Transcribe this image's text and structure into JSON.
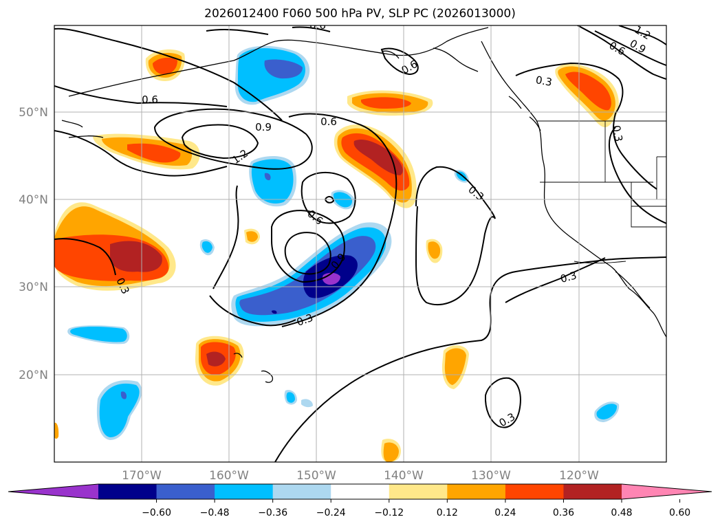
{
  "title": "2026012400 F060 500 hPa PV, SLP PC (2026013000)",
  "map": {
    "lon_ticks": [
      "170°W",
      "160°W",
      "150°W",
      "140°W",
      "130°W",
      "120°W"
    ],
    "lat_ticks": [
      "50°N",
      "40°N",
      "30°N",
      "20°N"
    ],
    "contour_labels": [
      {
        "text": "0.6"
      },
      {
        "text": "0.9"
      },
      {
        "text": "1.2"
      },
      {
        "text": "0.6"
      },
      {
        "text": "0.6"
      },
      {
        "text": "0.6"
      },
      {
        "text": "0.3"
      },
      {
        "text": "0.3"
      },
      {
        "text": "0.3"
      },
      {
        "text": "0.6"
      },
      {
        "text": "0.9"
      },
      {
        "text": "1.2"
      },
      {
        "text": "0.3"
      },
      {
        "text": "0.3"
      },
      {
        "text": "0.3"
      },
      {
        "text": "0.6"
      },
      {
        "text": "0.3"
      },
      {
        "text": "0.9"
      }
    ]
  },
  "colorbar": {
    "tick_labels": [
      "−0.60",
      "−0.48",
      "−0.36",
      "−0.24",
      "−0.12",
      "0.12",
      "0.24",
      "0.36",
      "0.48",
      "0.60"
    ],
    "colors": [
      "#9933cc",
      "#00008b",
      "#3a5fcd",
      "#00bfff",
      "#add8f0",
      "#ffffff",
      "#ffe88a",
      "#ffa500",
      "#ff4500",
      "#b22222",
      "#ff85b3"
    ]
  },
  "colors": {
    "orange": "#ffa500",
    "red_orange": "#ff4500",
    "dark_red": "#b22222",
    "yellow": "#ffe88a",
    "light_blue": "#add8f0",
    "sky_blue": "#00bfff",
    "royal_blue": "#3a5fcd",
    "navy": "#00008b",
    "purple": "#9933cc"
  }
}
